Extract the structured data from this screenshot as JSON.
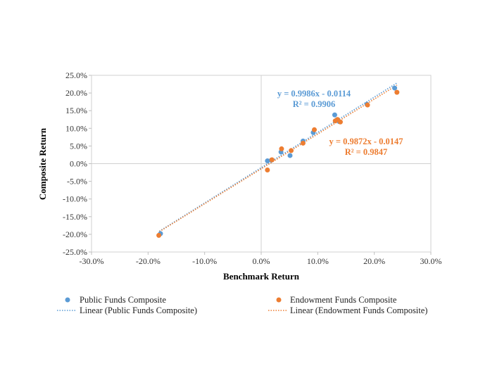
{
  "chart_data": {
    "type": "scatter",
    "title": "",
    "xlabel": "Benchmark Return",
    "ylabel": "Composite  Return",
    "xlim": [
      -0.3,
      0.3
    ],
    "ylim": [
      -0.25,
      0.25
    ],
    "x_ticks": [
      -0.3,
      -0.2,
      -0.1,
      0.0,
      0.1,
      0.2,
      0.3
    ],
    "x_tick_labels": [
      "-30.0%",
      "-20.0%",
      "-10.0%",
      "0.0%",
      "10.0%",
      "20.0%",
      "30.0%"
    ],
    "y_ticks": [
      0.25,
      0.2,
      0.15,
      0.1,
      0.05,
      0.0,
      -0.05,
      -0.1,
      -0.15,
      -0.2,
      -0.25
    ],
    "y_tick_labels": [
      "25.0%",
      "20.0%",
      "15.0%",
      "10.0%",
      "5.0%",
      "0.0%",
      "-5.0%",
      "-10.0%",
      "-15.0%",
      "-20.0%",
      "-25.0%"
    ],
    "grid": "zero-lines",
    "legend_position": "bottom",
    "series": [
      {
        "name": "Public Funds Composite",
        "color": "#5B9BD5",
        "points": [
          [
            -0.178,
            -0.198
          ],
          [
            0.011,
            0.008
          ],
          [
            0.018,
            0.01
          ],
          [
            0.035,
            0.033
          ],
          [
            0.051,
            0.023
          ],
          [
            0.074,
            0.064
          ],
          [
            0.092,
            0.088
          ],
          [
            0.13,
            0.138
          ],
          [
            0.134,
            0.124
          ],
          [
            0.138,
            0.119
          ],
          [
            0.187,
            0.168
          ],
          [
            0.236,
            0.214
          ]
        ],
        "trendline": {
          "name": "Linear (Public Funds Composite)",
          "slope": 0.9986,
          "intercept": -0.0114,
          "x_range": [
            -0.18,
            0.24
          ],
          "equation": "y = 0.9986x - 0.0114",
          "r2": "R² = 0.9906"
        }
      },
      {
        "name": "Endowment Funds Composite",
        "color": "#ED7D31",
        "points": [
          [
            -0.181,
            -0.203
          ],
          [
            0.011,
            -0.018
          ],
          [
            0.019,
            0.011
          ],
          [
            0.036,
            0.042
          ],
          [
            0.053,
            0.037
          ],
          [
            0.074,
            0.058
          ],
          [
            0.094,
            0.096
          ],
          [
            0.131,
            0.121
          ],
          [
            0.135,
            0.125
          ],
          [
            0.14,
            0.118
          ],
          [
            0.188,
            0.166
          ],
          [
            0.24,
            0.202
          ]
        ],
        "trendline": {
          "name": "Linear (Endowment Funds Composite)",
          "slope": 0.9872,
          "intercept": -0.0147,
          "x_range": [
            -0.18,
            0.24
          ],
          "equation": "y = 0.9872x - 0.0147",
          "r2": "R² = 0.9847"
        }
      }
    ]
  }
}
